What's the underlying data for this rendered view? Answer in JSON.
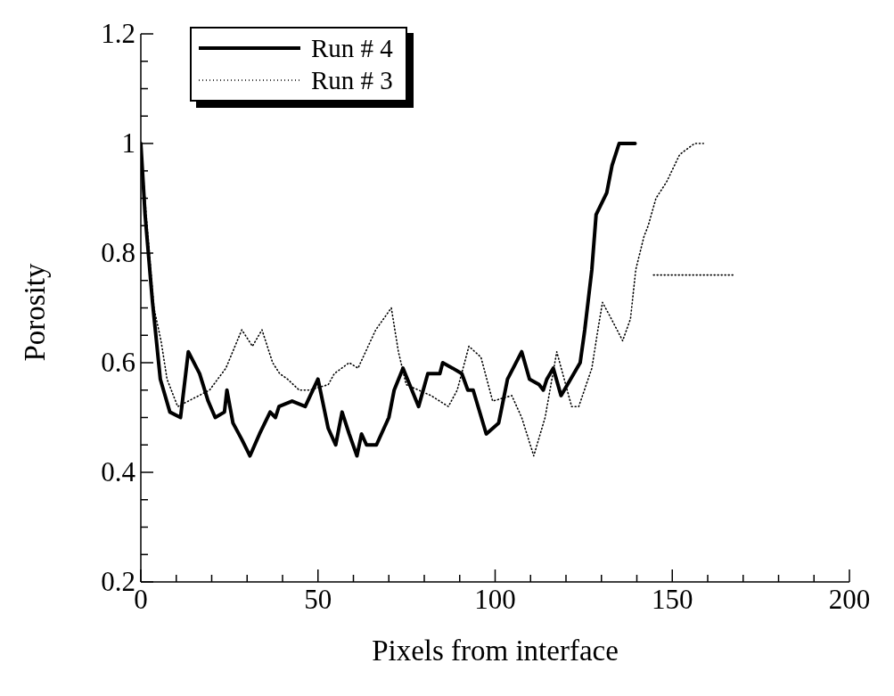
{
  "chart_data": {
    "type": "line",
    "xlabel": "Pixels from interface",
    "ylabel": "Porosity",
    "xlim": [
      0,
      200
    ],
    "xticks": [
      0,
      {
        "value": 10,
        "label": null
      },
      {
        "value": 20,
        "label": null
      },
      {
        "value": 30,
        "label": null
      },
      {
        "value": 40,
        "label": null
      },
      50,
      {
        "value": 60,
        "label": null
      },
      {
        "value": 70,
        "label": null
      },
      {
        "value": 80,
        "label": null
      },
      {
        "value": 90,
        "label": null
      },
      100,
      {
        "value": 110,
        "label": null
      },
      {
        "value": 120,
        "label": null
      },
      {
        "value": 130,
        "label": null
      },
      {
        "value": 140,
        "label": null
      },
      150,
      {
        "value": 160,
        "label": null
      },
      {
        "value": 170,
        "label": null
      },
      {
        "value": 180,
        "label": null
      },
      {
        "value": 190,
        "label": null
      },
      200
    ],
    "ylim": [
      0.2,
      1.2
    ],
    "yticks": [
      0.2,
      {
        "value": 0.25,
        "label": null
      },
      {
        "value": 0.3,
        "label": null
      },
      {
        "value": 0.35,
        "label": null
      },
      0.4,
      {
        "value": 0.45,
        "label": null
      },
      {
        "value": 0.5,
        "label": null
      },
      {
        "value": 0.55,
        "label": null
      },
      0.6,
      {
        "value": 0.65,
        "label": null
      },
      {
        "value": 0.7,
        "label": null
      },
      {
        "value": 0.75,
        "label": null
      },
      0.8,
      {
        "value": 0.85,
        "label": null
      },
      {
        "value": 0.9,
        "label": null
      },
      {
        "value": 0.95,
        "label": null
      },
      1,
      {
        "value": 1.05,
        "label": null
      },
      {
        "value": 1.1,
        "label": null
      },
      {
        "value": 1.15,
        "label": null
      },
      1.2
    ],
    "grid": false,
    "legend": "top left",
    "marker": "none",
    "series": [
      {
        "name": "Run # 4",
        "color": "#000000",
        "line_style": "solid",
        "x": [
          0,
          1.2,
          3.3,
          5.5,
          8.2,
          11.2,
          13.4,
          16.6,
          19,
          21,
          23.6,
          24.3,
          26,
          28.5,
          30.8,
          33.5,
          36.5,
          38,
          39,
          42.7,
          46.4,
          50,
          52.9,
          55,
          56.8,
          58.8,
          61,
          62.3,
          63.7,
          66.5,
          70,
          71.5,
          74,
          78.4,
          81,
          84.4,
          85.2,
          88,
          90.6,
          92.3,
          93.8,
          97.5,
          101,
          103.5,
          107.5,
          109.7,
          112.4,
          113.6,
          114.6,
          116.4,
          118.6,
          124,
          125.3,
          127.3,
          128.5,
          131.5,
          133,
          135,
          139.5
        ],
        "values": [
          1,
          0.87,
          0.71,
          0.57,
          0.51,
          0.5,
          0.62,
          0.58,
          0.53,
          0.5,
          0.51,
          0.55,
          0.49,
          0.46,
          0.43,
          0.47,
          0.51,
          0.5,
          0.52,
          0.53,
          0.52,
          0.57,
          0.48,
          0.45,
          0.51,
          0.47,
          0.43,
          0.47,
          0.45,
          0.45,
          0.5,
          0.55,
          0.59,
          0.52,
          0.58,
          0.58,
          0.6,
          0.59,
          0.58,
          0.55,
          0.55,
          0.47,
          0.49,
          0.57,
          0.62,
          0.57,
          0.56,
          0.55,
          0.57,
          0.59,
          0.54,
          0.6,
          0.66,
          0.77,
          0.87,
          0.91,
          0.96,
          1,
          1
        ]
      },
      {
        "name": "Run # 3",
        "color": "#000000",
        "line_style": "dotted",
        "x": [
          0,
          1.5,
          3.7,
          5.7,
          7.4,
          10.4,
          19.4,
          24,
          28.5,
          31.5,
          34.2,
          37.2,
          39.2,
          41.4,
          44.7,
          47.6,
          52.9,
          54.6,
          58.8,
          61.3,
          66.3,
          70.7,
          72.7,
          74.9,
          81.9,
          86.8,
          89.3,
          92.6,
          96,
          99.3,
          104.7,
          107.5,
          110.9,
          114.1,
          117.4,
          121.6,
          123.6,
          127.3,
          129,
          130.3,
          132.8,
          136,
          138.2,
          139.7,
          142,
          143.2,
          145.4,
          148.4,
          152.1,
          156.3,
          158.8
        ],
        "values": [
          1,
          0.87,
          0.7,
          0.64,
          0.57,
          0.52,
          0.55,
          0.59,
          0.66,
          0.63,
          0.66,
          0.6,
          0.58,
          0.57,
          0.55,
          0.55,
          0.56,
          0.58,
          0.6,
          0.59,
          0.66,
          0.7,
          0.62,
          0.56,
          0.54,
          0.52,
          0.55,
          0.63,
          0.61,
          0.53,
          0.54,
          0.5,
          0.43,
          0.5,
          0.62,
          0.52,
          0.52,
          0.59,
          0.66,
          0.71,
          0.68,
          0.64,
          0.68,
          0.77,
          0.83,
          0.85,
          0.9,
          0.93,
          0.98,
          1,
          1
        ]
      },
      {
        "color": "#000000",
        "line_style": "dotted",
        "x": [
          144.7,
          152,
          158.8,
          167.5
        ],
        "values": [
          0.76,
          0.76,
          0.76,
          0.76
        ]
      }
    ]
  }
}
